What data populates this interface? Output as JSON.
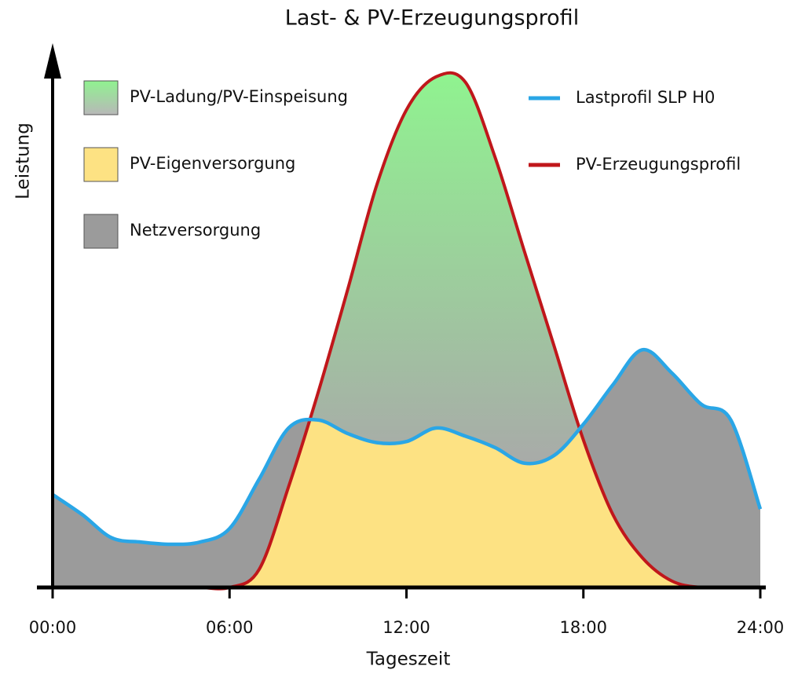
{
  "chart_data": {
    "type": "area",
    "title": "Last- & PV-Erzeugungsprofil",
    "x_label": "Tageszeit",
    "y_label": "Leistung",
    "x": [
      0,
      1,
      2,
      3,
      4,
      5,
      6,
      7,
      8,
      9,
      10,
      11,
      12,
      13,
      14,
      15,
      16,
      17,
      18,
      19,
      20,
      21,
      22,
      23,
      24
    ],
    "series": [
      {
        "name": "Lastprofil SLP H0",
        "color": "#2aa6e6",
        "values": [
          17.2,
          13.5,
          9.2,
          8.4,
          8,
          8.4,
          10.9,
          20,
          29.5,
          31,
          28.5,
          26.8,
          27,
          29.5,
          28,
          25.9,
          23,
          24.4,
          30.2,
          37.5,
          44,
          39.7,
          33.9,
          31,
          14.5
        ]
      },
      {
        "name": "PV-Erzeugungsprofil",
        "color": "#c0171b",
        "values": [
          0,
          0,
          0,
          0,
          0,
          0,
          0,
          3.3,
          18.6,
          36,
          55,
          74.6,
          88.4,
          94.5,
          93.5,
          79.7,
          62.2,
          44.8,
          27.3,
          13.5,
          5.5,
          1.2,
          0,
          0,
          0
        ]
      }
    ],
    "area_legend": [
      {
        "name": "PV-Ladung/PV-Einspeisung",
        "color": "#90f290"
      },
      {
        "name": "PV-Eigenversorgung",
        "color": "#fde283"
      },
      {
        "name": "Netzversorgung",
        "color": "#9b9b9b"
      }
    ],
    "xlim": [
      0,
      24
    ],
    "xticks": [
      {
        "value": 0,
        "label": "00:00"
      },
      {
        "value": 6,
        "label": "06:00"
      },
      {
        "value": 12,
        "label": "12:00"
      },
      {
        "value": 18,
        "label": "18:00"
      },
      {
        "value": 24,
        "label": "24:00"
      }
    ],
    "ylim": [
      0,
      100
    ]
  }
}
